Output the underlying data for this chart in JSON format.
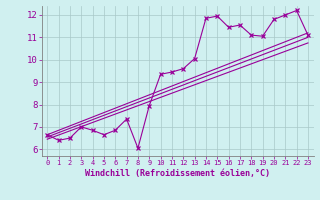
{
  "title": "",
  "xlabel": "Windchill (Refroidissement éolien,°C)",
  "bg_color": "#d0f0f0",
  "line_color": "#990099",
  "grid_color": "#b0d8d8",
  "xlim": [
    -0.5,
    23.5
  ],
  "ylim": [
    5.7,
    12.4
  ],
  "xticks": [
    0,
    1,
    2,
    3,
    4,
    5,
    6,
    7,
    8,
    9,
    10,
    11,
    12,
    13,
    14,
    15,
    16,
    17,
    18,
    19,
    20,
    21,
    22,
    23
  ],
  "yticks": [
    6,
    7,
    8,
    9,
    10,
    11,
    12
  ],
  "line1_x": [
    0,
    1,
    2,
    3,
    4,
    5,
    6,
    7,
    8,
    9,
    10,
    11,
    12,
    13,
    14,
    15,
    16,
    17,
    18,
    19,
    20,
    21,
    22,
    23
  ],
  "line1_y": [
    6.65,
    6.4,
    6.5,
    7.0,
    6.85,
    6.65,
    6.85,
    7.35,
    6.05,
    7.95,
    9.35,
    9.45,
    9.6,
    10.05,
    11.85,
    11.95,
    11.45,
    11.55,
    11.1,
    11.05,
    11.8,
    12.0,
    12.2,
    11.1
  ],
  "line2_x": [
    0,
    23
  ],
  "line2_y": [
    6.55,
    11.0
  ],
  "line3_x": [
    0,
    23
  ],
  "line3_y": [
    6.45,
    10.75
  ],
  "line4_x": [
    0,
    23
  ],
  "line4_y": [
    6.65,
    11.2
  ]
}
